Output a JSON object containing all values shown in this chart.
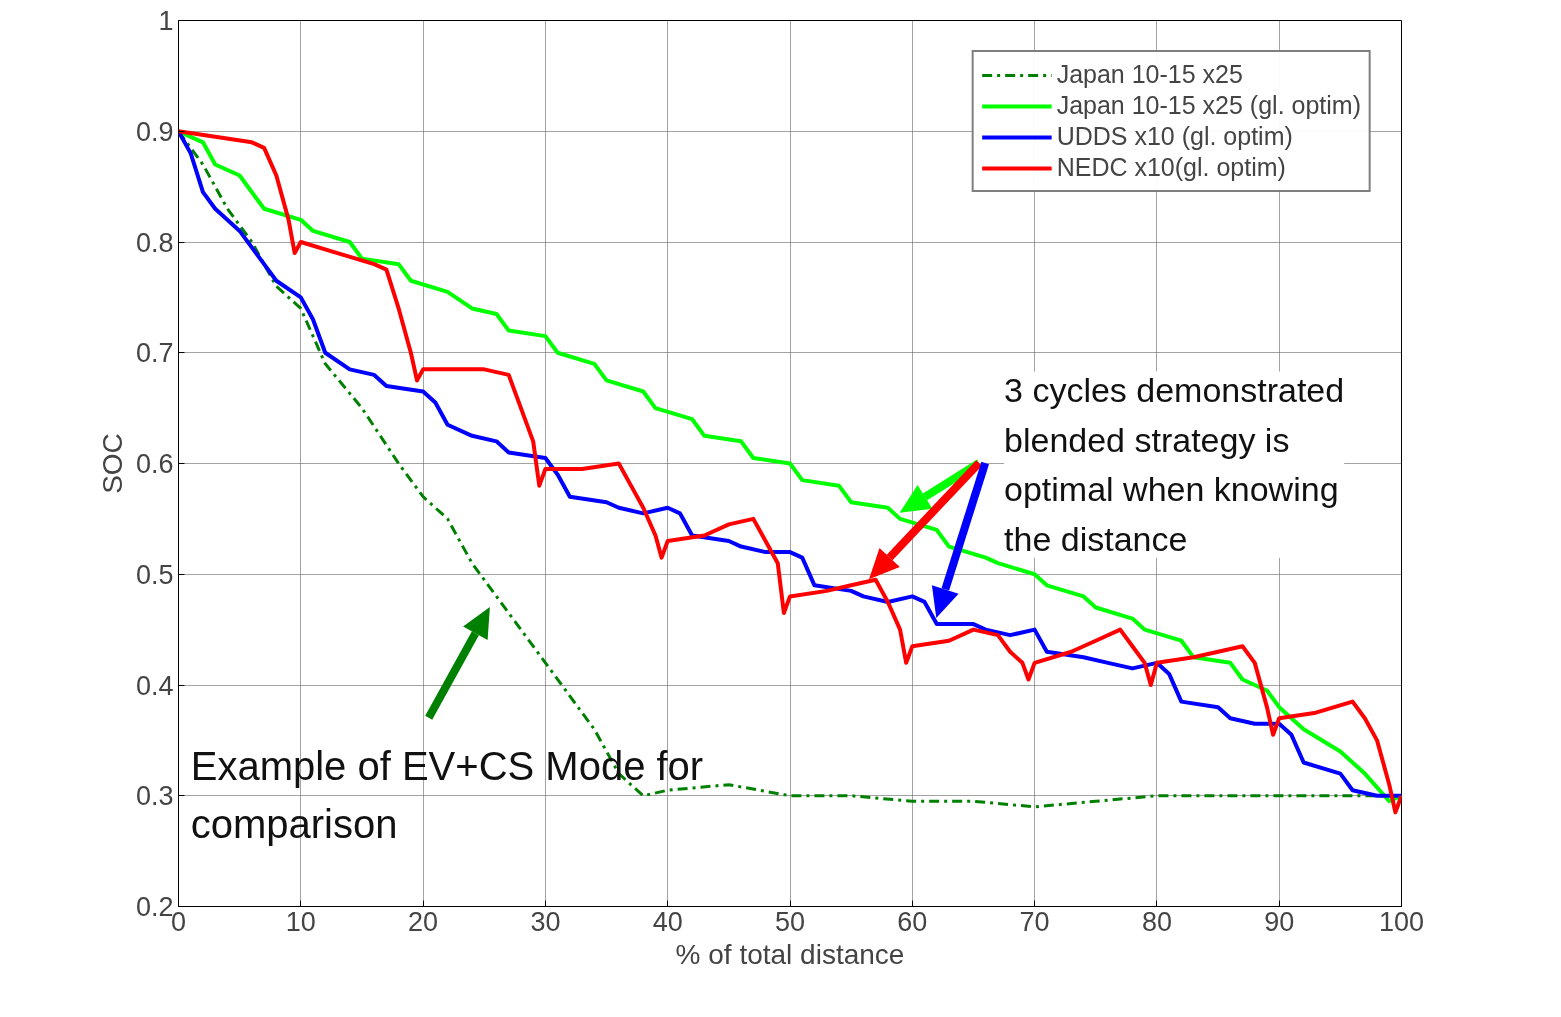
{
  "chart_data": {
    "type": "line",
    "xlabel": "% of total distance",
    "ylabel": "SOC",
    "xlim": [
      0,
      100
    ],
    "ylim": [
      0.2,
      1
    ],
    "xticks": [
      0,
      10,
      20,
      30,
      40,
      50,
      60,
      70,
      80,
      90,
      100
    ],
    "yticks": [
      {
        "value": 0.2,
        "label": "0.2"
      },
      {
        "value": 0.3,
        "label": "0.3"
      },
      {
        "value": 0.4,
        "label": "0.4"
      },
      {
        "value": 0.5,
        "label": "0.5"
      },
      {
        "value": 0.6,
        "label": "0.6"
      },
      {
        "value": 0.7,
        "label": "0.7"
      },
      {
        "value": 0.8,
        "label": "0.8"
      },
      {
        "value": 0.9,
        "label": "0.9"
      },
      1
    ],
    "grid": true,
    "legend": "top right",
    "annotations": [
      "Example of EV+CS Mode for\ncomparison",
      "3 cycles demonstrated\nblended strategy is\noptimal when knowing\nthe distance"
    ],
    "series": [
      {
        "name": "Japan 10-15 x25",
        "color": "#008000",
        "line_style": "dashdot",
        "x": [
          0,
          2,
          4,
          6,
          8,
          10,
          12,
          15,
          18,
          20,
          22,
          24,
          26,
          28,
          30,
          32,
          34,
          36,
          38,
          40,
          45,
          50,
          55,
          60,
          65,
          70,
          75,
          80,
          85,
          90,
          95,
          100
        ],
        "values": [
          0.9,
          0.87,
          0.83,
          0.8,
          0.76,
          0.74,
          0.69,
          0.65,
          0.6,
          0.57,
          0.55,
          0.51,
          0.48,
          0.45,
          0.42,
          0.39,
          0.36,
          0.32,
          0.3,
          0.305,
          0.31,
          0.3,
          0.3,
          0.295,
          0.295,
          0.29,
          0.295,
          0.3,
          0.3,
          0.3,
          0.3,
          0.3
        ]
      },
      {
        "name": "Japan 10-15 x25 (gl. optim)",
        "color": "#00ff00",
        "line_style": "solid",
        "x": [
          0,
          2,
          3,
          5,
          7,
          10,
          11,
          14,
          15,
          18,
          19,
          22,
          24,
          26,
          27,
          30,
          31,
          34,
          35,
          38,
          39,
          42,
          43,
          46,
          47,
          50,
          51,
          54,
          55,
          58,
          59,
          62,
          63,
          66,
          67,
          70,
          71,
          74,
          75,
          78,
          79,
          82,
          83,
          86,
          87,
          89,
          90,
          92,
          95,
          97,
          99,
          100
        ],
        "values": [
          0.9,
          0.89,
          0.87,
          0.86,
          0.83,
          0.82,
          0.81,
          0.8,
          0.785,
          0.78,
          0.765,
          0.755,
          0.74,
          0.735,
          0.72,
          0.715,
          0.7,
          0.69,
          0.675,
          0.665,
          0.65,
          0.64,
          0.625,
          0.62,
          0.605,
          0.6,
          0.585,
          0.58,
          0.565,
          0.56,
          0.55,
          0.54,
          0.525,
          0.515,
          0.51,
          0.5,
          0.49,
          0.48,
          0.47,
          0.46,
          0.45,
          0.44,
          0.425,
          0.42,
          0.405,
          0.395,
          0.38,
          0.36,
          0.34,
          0.32,
          0.295,
          0.3
        ]
      },
      {
        "name": "UDDS x10 (gl. optim)",
        "color": "#0000ff",
        "line_style": "solid",
        "x": [
          0,
          1,
          2,
          3,
          5,
          7,
          8,
          10,
          11,
          12,
          14,
          16,
          17,
          20,
          21,
          22,
          24,
          26,
          27,
          30,
          31,
          32,
          35,
          36,
          38,
          40,
          41,
          42,
          45,
          46,
          48,
          50,
          51,
          52,
          55,
          56,
          58,
          60,
          61,
          62,
          65,
          66,
          68,
          70,
          71,
          74,
          76,
          78,
          80,
          81,
          82,
          85,
          86,
          88,
          90,
          91,
          92,
          95,
          96,
          98,
          100
        ],
        "values": [
          0.9,
          0.88,
          0.845,
          0.83,
          0.81,
          0.78,
          0.765,
          0.75,
          0.73,
          0.7,
          0.685,
          0.68,
          0.67,
          0.665,
          0.655,
          0.635,
          0.625,
          0.62,
          0.61,
          0.605,
          0.59,
          0.57,
          0.565,
          0.56,
          0.555,
          0.56,
          0.555,
          0.535,
          0.53,
          0.525,
          0.52,
          0.52,
          0.515,
          0.49,
          0.485,
          0.48,
          0.475,
          0.48,
          0.475,
          0.455,
          0.455,
          0.45,
          0.445,
          0.45,
          0.43,
          0.425,
          0.42,
          0.415,
          0.42,
          0.41,
          0.385,
          0.38,
          0.37,
          0.365,
          0.365,
          0.355,
          0.33,
          0.32,
          0.305,
          0.3,
          0.3
        ]
      },
      {
        "name": "NEDC x10(gl. optim)",
        "color": "#ff0000",
        "line_style": "solid",
        "x": [
          0,
          3,
          6,
          7,
          8,
          9,
          9.5,
          10,
          13,
          16,
          17,
          18,
          19,
          19.5,
          20,
          25,
          27,
          28,
          29,
          29.5,
          30,
          33,
          36,
          37,
          38,
          39,
          39.5,
          40,
          43,
          45,
          47,
          48,
          49,
          49.5,
          50,
          53,
          55,
          57,
          58,
          59,
          59.5,
          60,
          63,
          65,
          67,
          68,
          69,
          69.5,
          70,
          73,
          75,
          77,
          78,
          79,
          79.5,
          80,
          83,
          85,
          87,
          88,
          89,
          89.5,
          90,
          93,
          96,
          97,
          98,
          99,
          99.5,
          100
        ],
        "values": [
          0.9,
          0.895,
          0.89,
          0.885,
          0.86,
          0.82,
          0.79,
          0.8,
          0.79,
          0.78,
          0.775,
          0.74,
          0.7,
          0.675,
          0.685,
          0.685,
          0.68,
          0.65,
          0.62,
          0.58,
          0.595,
          0.595,
          0.6,
          0.58,
          0.56,
          0.535,
          0.515,
          0.53,
          0.535,
          0.545,
          0.55,
          0.53,
          0.51,
          0.465,
          0.48,
          0.485,
          0.49,
          0.495,
          0.475,
          0.45,
          0.42,
          0.435,
          0.44,
          0.45,
          0.445,
          0.43,
          0.42,
          0.405,
          0.42,
          0.43,
          0.44,
          0.45,
          0.435,
          0.42,
          0.4,
          0.42,
          0.425,
          0.43,
          0.435,
          0.42,
          0.38,
          0.355,
          0.37,
          0.375,
          0.385,
          0.37,
          0.35,
          0.31,
          0.285,
          0.3
        ]
      }
    ]
  }
}
